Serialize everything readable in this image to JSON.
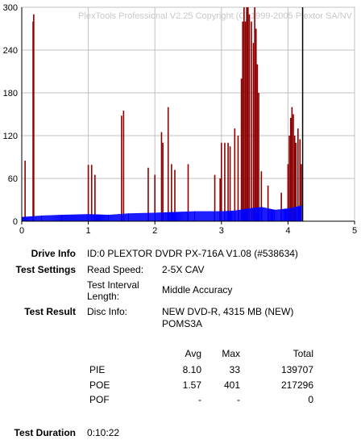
{
  "chart_data": {
    "type": "bar",
    "watermark": "PlexTools Professional V2.25 Copyright (C) 1999-2005 Plextor SA/NV",
    "xlim": [
      0,
      5
    ],
    "ylim": [
      0,
      300
    ],
    "x_ticks": [
      "0",
      "1",
      "2",
      "3",
      "4",
      "5"
    ],
    "y_ticks": [
      "300",
      "240",
      "180",
      "120",
      "60",
      "0"
    ],
    "grid": true,
    "data_end_x": 4.22,
    "series": [
      {
        "color": "#8b0000",
        "points": [
          [
            0.05,
            85
          ],
          [
            0.17,
            280
          ],
          [
            0.18,
            290
          ],
          [
            1.0,
            79
          ],
          [
            1.05,
            79
          ],
          [
            1.1,
            65
          ],
          [
            1.5,
            148
          ],
          [
            1.53,
            155
          ],
          [
            1.9,
            75
          ],
          [
            2.0,
            65
          ],
          [
            2.1,
            125
          ],
          [
            2.12,
            110
          ],
          [
            2.2,
            160
          ],
          [
            2.25,
            80
          ],
          [
            2.3,
            72
          ],
          [
            2.5,
            80
          ],
          [
            2.9,
            65
          ],
          [
            2.98,
            60
          ],
          [
            3.0,
            110
          ],
          [
            3.05,
            110
          ],
          [
            3.1,
            110
          ],
          [
            3.13,
            105
          ],
          [
            3.2,
            130
          ],
          [
            3.25,
            120
          ],
          [
            3.3,
            200
          ],
          [
            3.32,
            280
          ],
          [
            3.34,
            300
          ],
          [
            3.36,
            280
          ],
          [
            3.38,
            300
          ],
          [
            3.4,
            300
          ],
          [
            3.42,
            290
          ],
          [
            3.45,
            280
          ],
          [
            3.48,
            250
          ],
          [
            3.5,
            300
          ],
          [
            3.52,
            270
          ],
          [
            3.54,
            220
          ],
          [
            3.56,
            180
          ],
          [
            3.6,
            70
          ],
          [
            3.7,
            50
          ],
          [
            3.9,
            40
          ],
          [
            4.0,
            80
          ],
          [
            4.02,
            120
          ],
          [
            4.04,
            145
          ],
          [
            4.06,
            160
          ],
          [
            4.08,
            150
          ],
          [
            4.1,
            120
          ],
          [
            4.12,
            110
          ],
          [
            4.15,
            130
          ],
          [
            4.18,
            115
          ],
          [
            4.2,
            80
          ]
        ]
      },
      {
        "color": "#0000ff",
        "points": [
          [
            0.0,
            6
          ],
          [
            0.3,
            8
          ],
          [
            0.6,
            9
          ],
          [
            1.0,
            10
          ],
          [
            1.3,
            9
          ],
          [
            1.6,
            11
          ],
          [
            2.0,
            12
          ],
          [
            2.3,
            13
          ],
          [
            2.6,
            14
          ],
          [
            3.0,
            14
          ],
          [
            3.2,
            15
          ],
          [
            3.4,
            18
          ],
          [
            3.6,
            20
          ],
          [
            3.8,
            16
          ],
          [
            4.0,
            18
          ],
          [
            4.2,
            22
          ]
        ]
      }
    ]
  },
  "info": {
    "drive_info_label": "Drive Info",
    "drive_info_value": "ID:0 PLEXTOR DVDR PX-716A V1.08 (#538634)",
    "test_settings_label": "Test Settings",
    "read_speed_label": "Read Speed:",
    "read_speed_value": "2-5X CAV",
    "interval_label_1": "Test Interval",
    "interval_label_2": "Length:",
    "interval_value": "Middle Accuracy",
    "test_result_label": "Test Result",
    "disc_info_label": "Disc Info:",
    "disc_info_value_1": "NEW DVD-R, 4315 MB (NEW)",
    "disc_info_value_2": "POMS3A",
    "test_duration_label": "Test Duration",
    "test_duration_value": "0:10:22"
  },
  "stats": {
    "headers": [
      "Avg",
      "Max",
      "Total"
    ],
    "rows": [
      {
        "name": "PIE",
        "avg": "8.10",
        "max": "33",
        "total": "139707"
      },
      {
        "name": "POE",
        "avg": "1.57",
        "max": "401",
        "total": "217296"
      },
      {
        "name": "POF",
        "avg": "-",
        "max": "-",
        "total": "0"
      }
    ]
  }
}
